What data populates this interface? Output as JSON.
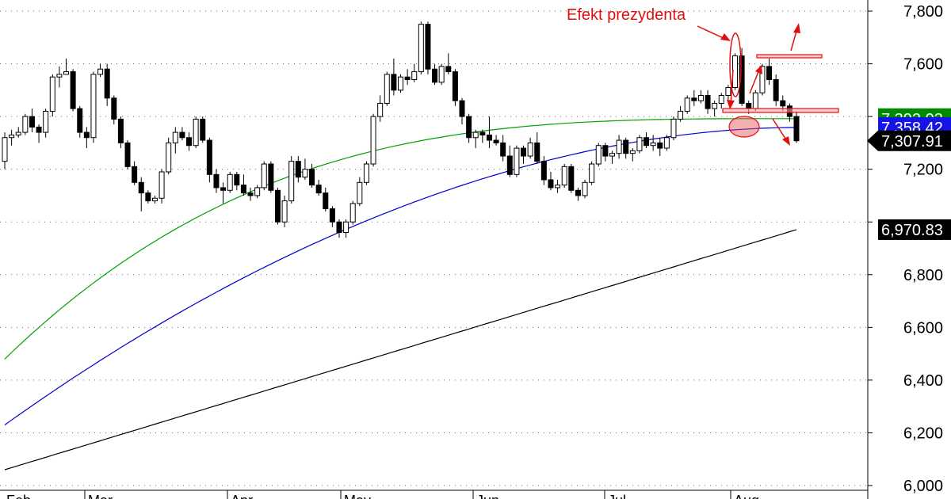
{
  "chart_data": {
    "type": "candlestick",
    "ylim": [
      6000,
      7800
    ],
    "y_ticks": [
      6000,
      6200,
      6400,
      6600,
      6800,
      7000,
      7200,
      7400,
      7600,
      7800
    ],
    "y_tick_labels": [
      "6,000",
      "6,200",
      "6,400",
      "6,600",
      "6,800",
      "",
      "7,200",
      "",
      "7,600",
      "7,800"
    ],
    "grid": true,
    "months": [
      "Feb",
      "Mar",
      "Apr",
      "May",
      "Jun",
      "Jul",
      "Aug"
    ],
    "candles": [
      [
        7230,
        7340,
        7200,
        7320
      ],
      [
        7320,
        7350,
        7290,
        7330
      ],
      [
        7330,
        7360,
        7320,
        7340
      ],
      [
        7340,
        7410,
        7330,
        7400
      ],
      [
        7400,
        7430,
        7340,
        7360
      ],
      [
        7360,
        7370,
        7300,
        7340
      ],
      [
        7340,
        7430,
        7320,
        7420
      ],
      [
        7420,
        7560,
        7400,
        7550
      ],
      [
        7550,
        7590,
        7510,
        7560
      ],
      [
        7560,
        7620,
        7560,
        7570
      ],
      [
        7570,
        7580,
        7420,
        7430
      ],
      [
        7430,
        7440,
        7320,
        7340
      ],
      [
        7340,
        7360,
        7280,
        7320
      ],
      [
        7320,
        7570,
        7300,
        7560
      ],
      [
        7560,
        7600,
        7550,
        7580
      ],
      [
        7580,
        7600,
        7440,
        7470
      ],
      [
        7470,
        7480,
        7370,
        7390
      ],
      [
        7390,
        7400,
        7280,
        7300
      ],
      [
        7300,
        7310,
        7200,
        7210
      ],
      [
        7210,
        7230,
        7140,
        7150
      ],
      [
        7150,
        7170,
        7040,
        7110
      ],
      [
        7110,
        7120,
        7070,
        7080
      ],
      [
        7080,
        7100,
        7070,
        7090
      ],
      [
        7090,
        7200,
        7070,
        7190
      ],
      [
        7190,
        7320,
        7180,
        7300
      ],
      [
        7300,
        7360,
        7260,
        7340
      ],
      [
        7340,
        7360,
        7310,
        7320
      ],
      [
        7320,
        7340,
        7270,
        7290
      ],
      [
        7290,
        7400,
        7280,
        7390
      ],
      [
        7390,
        7400,
        7300,
        7310
      ],
      [
        7310,
        7320,
        7150,
        7180
      ],
      [
        7180,
        7200,
        7110,
        7130
      ],
      [
        7130,
        7150,
        7070,
        7120
      ],
      [
        7120,
        7190,
        7110,
        7180
      ],
      [
        7180,
        7190,
        7120,
        7140
      ],
      [
        7140,
        7180,
        7100,
        7110
      ],
      [
        7110,
        7130,
        7080,
        7100
      ],
      [
        7100,
        7140,
        7090,
        7130
      ],
      [
        7130,
        7230,
        7120,
        7220
      ],
      [
        7220,
        7230,
        7110,
        7120
      ],
      [
        7120,
        7130,
        6990,
        7000
      ],
      [
        7000,
        7100,
        6980,
        7080
      ],
      [
        7080,
        7250,
        7070,
        7230
      ],
      [
        7230,
        7250,
        7150,
        7170
      ],
      [
        7170,
        7240,
        7160,
        7200
      ],
      [
        7200,
        7220,
        7130,
        7140
      ],
      [
        7140,
        7160,
        7100,
        7110
      ],
      [
        7110,
        7130,
        7040,
        7050
      ],
      [
        7050,
        7060,
        6980,
        7000
      ],
      [
        7000,
        7010,
        6940,
        6960
      ],
      [
        6960,
        7010,
        6940,
        7000
      ],
      [
        7000,
        7080,
        6990,
        7070
      ],
      [
        7070,
        7170,
        7060,
        7150
      ],
      [
        7150,
        7230,
        7140,
        7220
      ],
      [
        7220,
        7410,
        7210,
        7400
      ],
      [
        7400,
        7480,
        7380,
        7450
      ],
      [
        7450,
        7570,
        7440,
        7560
      ],
      [
        7560,
        7620,
        7480,
        7500
      ],
      [
        7500,
        7560,
        7490,
        7550
      ],
      [
        7550,
        7580,
        7520,
        7540
      ],
      [
        7540,
        7600,
        7530,
        7570
      ],
      [
        7570,
        7760,
        7560,
        7750
      ],
      [
        7750,
        7760,
        7560,
        7580
      ],
      [
        7580,
        7600,
        7520,
        7530
      ],
      [
        7530,
        7600,
        7520,
        7590
      ],
      [
        7590,
        7640,
        7560,
        7570
      ],
      [
        7570,
        7580,
        7440,
        7460
      ],
      [
        7460,
        7470,
        7370,
        7400
      ],
      [
        7400,
        7410,
        7300,
        7320
      ],
      [
        7320,
        7350,
        7280,
        7340
      ],
      [
        7340,
        7350,
        7300,
        7330
      ],
      [
        7330,
        7400,
        7280,
        7310
      ],
      [
        7310,
        7330,
        7290,
        7300
      ],
      [
        7300,
        7330,
        7230,
        7250
      ],
      [
        7250,
        7290,
        7170,
        7180
      ],
      [
        7180,
        7290,
        7170,
        7280
      ],
      [
        7280,
        7290,
        7220,
        7250
      ],
      [
        7250,
        7320,
        7240,
        7300
      ],
      [
        7300,
        7340,
        7220,
        7230
      ],
      [
        7230,
        7250,
        7140,
        7160
      ],
      [
        7160,
        7190,
        7120,
        7130
      ],
      [
        7130,
        7160,
        7110,
        7140
      ],
      [
        7140,
        7220,
        7130,
        7210
      ],
      [
        7210,
        7220,
        7110,
        7120
      ],
      [
        7120,
        7130,
        7080,
        7100
      ],
      [
        7100,
        7160,
        7090,
        7150
      ],
      [
        7150,
        7230,
        7140,
        7220
      ],
      [
        7220,
        7300,
        7210,
        7290
      ],
      [
        7290,
        7300,
        7230,
        7250
      ],
      [
        7250,
        7270,
        7220,
        7260
      ],
      [
        7260,
        7330,
        7240,
        7310
      ],
      [
        7310,
        7320,
        7240,
        7260
      ],
      [
        7260,
        7280,
        7230,
        7270
      ],
      [
        7270,
        7330,
        7260,
        7320
      ],
      [
        7320,
        7340,
        7280,
        7290
      ],
      [
        7290,
        7330,
        7270,
        7300
      ],
      [
        7300,
        7320,
        7250,
        7280
      ],
      [
        7280,
        7330,
        7270,
        7320
      ],
      [
        7320,
        7400,
        7310,
        7390
      ],
      [
        7390,
        7440,
        7380,
        7420
      ],
      [
        7420,
        7480,
        7410,
        7470
      ],
      [
        7470,
        7500,
        7440,
        7460
      ],
      [
        7460,
        7500,
        7450,
        7480
      ],
      [
        7480,
        7500,
        7410,
        7430
      ],
      [
        7430,
        7460,
        7400,
        7450
      ],
      [
        7450,
        7490,
        7430,
        7480
      ],
      [
        7480,
        7520,
        7460,
        7510
      ],
      [
        7510,
        7640,
        7500,
        7630
      ],
      [
        7630,
        7660,
        7440,
        7450
      ],
      [
        7450,
        7460,
        7410,
        7430
      ],
      [
        7430,
        7500,
        7420,
        7490
      ],
      [
        7490,
        7600,
        7480,
        7590
      ],
      [
        7590,
        7620,
        7520,
        7540
      ],
      [
        7540,
        7560,
        7440,
        7460
      ],
      [
        7460,
        7480,
        7420,
        7440
      ],
      [
        7440,
        7450,
        7380,
        7400
      ],
      [
        7400,
        7420,
        7300,
        7308
      ]
    ],
    "ma_series": [
      {
        "color": "#00a000",
        "start": 6480,
        "end": 7392.03
      },
      {
        "color": "#0000d0",
        "start": 6230,
        "end": 7358.42
      },
      {
        "color": "#000000",
        "start": 6060,
        "end": 6970.83
      }
    ],
    "value_badges": [
      {
        "label": "7,392.03",
        "value": 7392.03,
        "color": "#008a00"
      },
      {
        "label": "7,358.42",
        "value": 7358.42,
        "color": "#1414e6"
      },
      {
        "label": "7,307.91",
        "value": 7307.91,
        "color": "#000000"
      },
      {
        "label": "6,970.83",
        "value": 6970.83,
        "color": "#000000"
      }
    ],
    "annotation": {
      "text": "Efekt prezydenta",
      "color": "#e01010"
    }
  }
}
